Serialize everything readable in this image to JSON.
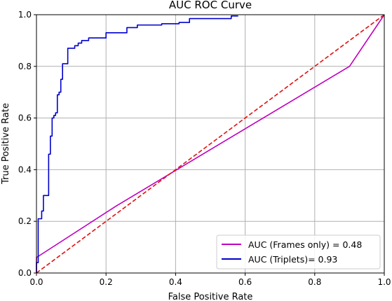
{
  "chart_data": {
    "type": "line",
    "title": "AUC ROC Curve",
    "xlabel": "False Positive Rate",
    "ylabel": "True Positive Rate",
    "xlim": [
      0.0,
      1.0
    ],
    "ylim": [
      0.0,
      1.0
    ],
    "xticks": [
      "0.0",
      "0.2",
      "0.4",
      "0.6",
      "0.8",
      "1.0"
    ],
    "yticks": [
      "0.0",
      "0.2",
      "0.4",
      "0.6",
      "0.8",
      "1.0"
    ],
    "grid": true,
    "legend_position": "lower-right",
    "series": [
      {
        "name": "AUC (Frames only) = 0.48",
        "color": "#bf00bf",
        "dash": "solid",
        "x": [
          0.0,
          0.0,
          0.23,
          0.9,
          1.0
        ],
        "y": [
          0.0,
          0.06,
          0.26,
          0.8,
          1.0
        ]
      },
      {
        "name": "AUC (Triplets)= 0.93",
        "color": "#0000cc",
        "dash": "solid",
        "x": [
          0.0,
          0.0,
          0.005,
          0.005,
          0.015,
          0.015,
          0.02,
          0.02,
          0.025,
          0.025,
          0.035,
          0.035,
          0.04,
          0.04,
          0.045,
          0.045,
          0.05,
          0.05,
          0.055,
          0.055,
          0.06,
          0.06,
          0.065,
          0.065,
          0.07,
          0.07,
          0.075,
          0.075,
          0.08,
          0.08,
          0.09,
          0.09,
          0.1,
          0.1,
          0.11,
          0.11,
          0.12,
          0.12,
          0.13,
          0.13,
          0.15,
          0.15,
          0.165,
          0.165,
          0.2,
          0.2,
          0.26,
          0.26,
          0.29,
          0.29,
          0.36,
          0.36,
          0.41,
          0.41,
          0.44,
          0.44,
          0.56,
          0.56,
          0.58
        ],
        "y": [
          0.0,
          0.04,
          0.04,
          0.21,
          0.21,
          0.24,
          0.24,
          0.3,
          0.3,
          0.3,
          0.3,
          0.46,
          0.46,
          0.53,
          0.53,
          0.6,
          0.6,
          0.61,
          0.61,
          0.62,
          0.62,
          0.69,
          0.69,
          0.7,
          0.7,
          0.75,
          0.75,
          0.81,
          0.81,
          0.81,
          0.81,
          0.87,
          0.87,
          0.87,
          0.87,
          0.88,
          0.88,
          0.89,
          0.89,
          0.9,
          0.9,
          0.91,
          0.91,
          0.91,
          0.91,
          0.93,
          0.93,
          0.95,
          0.95,
          0.96,
          0.96,
          0.965,
          0.965,
          0.97,
          0.97,
          0.985,
          0.985,
          0.995,
          0.995
        ]
      },
      {
        "name": "",
        "color": "#e01010",
        "dash": "dashed",
        "x": [
          0.0,
          1.0
        ],
        "y": [
          0.0,
          1.0
        ]
      }
    ]
  }
}
